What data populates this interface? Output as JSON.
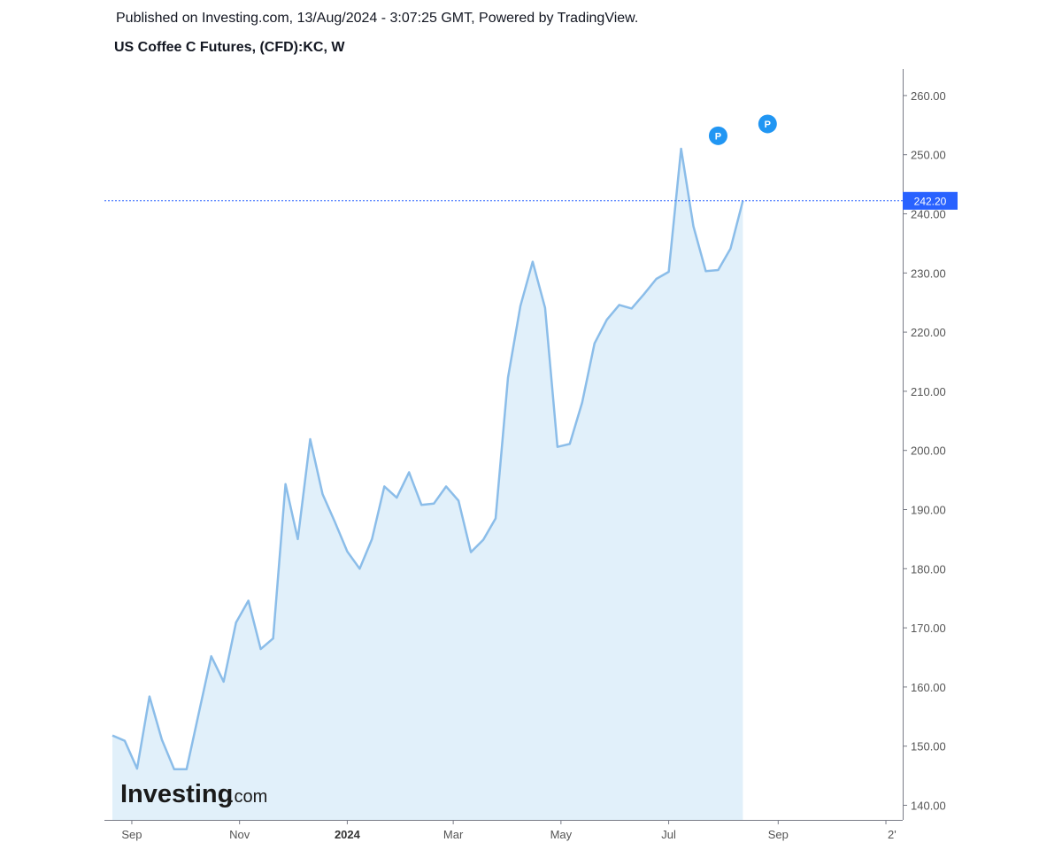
{
  "header": {
    "published": "Published on Investing.com, 13/Aug/2024 - 3:07:25 GMT, Powered by TradingView.",
    "title": "US Coffee C Futures, (CFD):KC, W"
  },
  "logo": {
    "main": "Investing",
    "suffix": ".com"
  },
  "chart_data": {
    "type": "area",
    "title": "US Coffee C Futures, (CFD):KC, W",
    "x_start": "2023-08-21",
    "x_interval_days": 7,
    "y": [
      151.8,
      150.9,
      146.2,
      158.4,
      151.1,
      146.1,
      146.1,
      155.7,
      165.2,
      160.9,
      170.9,
      174.6,
      166.4,
      168.2,
      194.3,
      185.0,
      201.9,
      192.6,
      187.9,
      182.9,
      180.0,
      185.0,
      193.9,
      192.0,
      196.3,
      190.8,
      191.0,
      193.9,
      191.5,
      182.8,
      184.9,
      188.5,
      212.3,
      224.4,
      231.9,
      224.1,
      200.6,
      201.1,
      208.1,
      218.1,
      222.1,
      224.6,
      224.0,
      226.4,
      229.0,
      230.2,
      251.0,
      237.9,
      230.3,
      230.5,
      234.1,
      242.2
    ],
    "ylim": [
      138,
      264
    ],
    "y_ticks": [
      "140.00",
      "150.00",
      "160.00",
      "170.00",
      "180.00",
      "190.00",
      "200.00",
      "210.00",
      "220.00",
      "230.00",
      "240.00",
      "250.00",
      "260.00"
    ],
    "x_ticks": [
      "Sep",
      "Nov",
      "2024",
      "Mar",
      "May",
      "Jul",
      "Sep",
      "2'"
    ],
    "last_value_label": "242.20",
    "markers": [
      {
        "label": "P",
        "date": "2024-07-29",
        "value": 253.2
      },
      {
        "label": "P",
        "date": "2024-08-26",
        "value": 255.2
      }
    ],
    "colors": {
      "line": "#8bbde9",
      "fill": "#e1f0fa",
      "last_value": "#2962ff",
      "marker": "#2196f3",
      "axis": "#787b86"
    },
    "grid": false,
    "legend": "none"
  }
}
